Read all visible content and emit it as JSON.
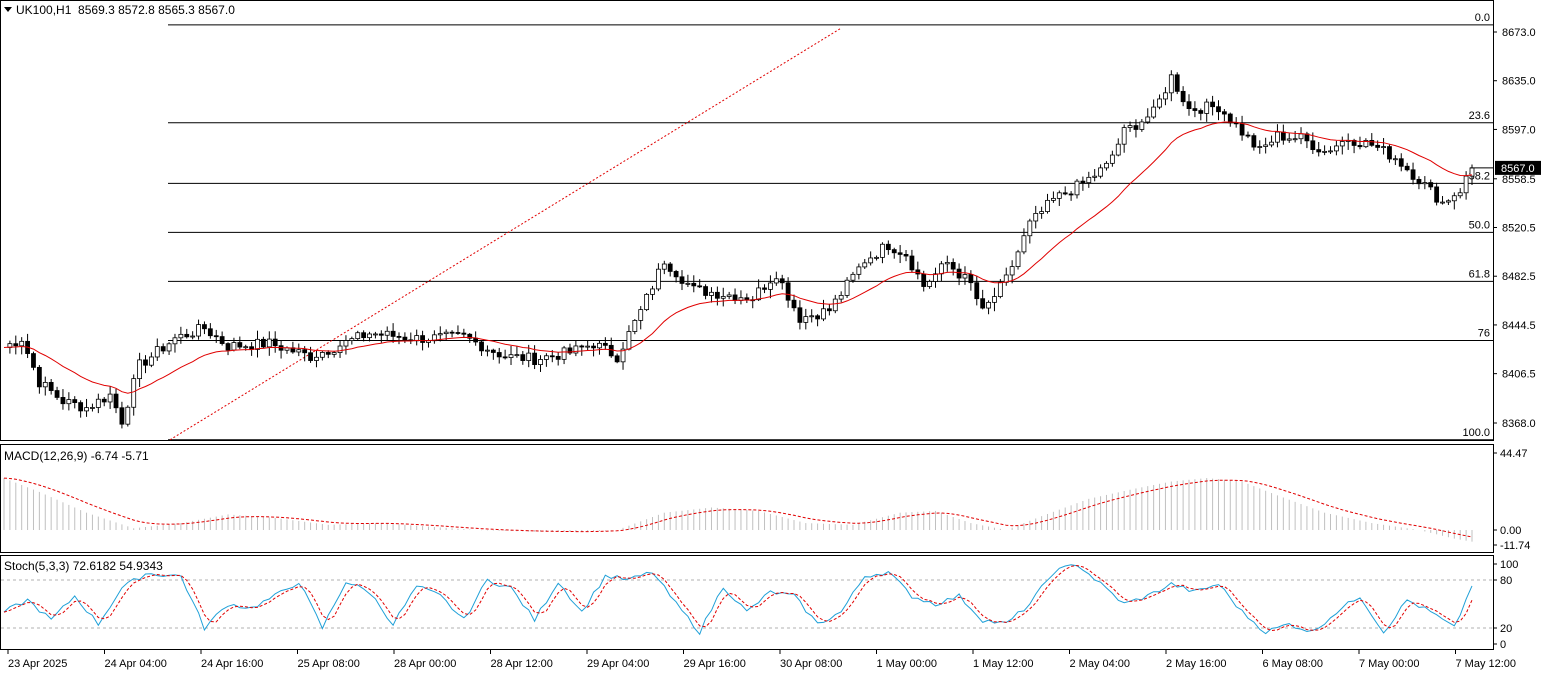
{
  "header": {
    "symbol": "UK100,H1",
    "ohlc": "8569.3 8572.8 8565.3 8567.0"
  },
  "price_axis": {
    "ticks": [
      "8673.0",
      "8635.0",
      "8597.0",
      "8558.5",
      "8520.5",
      "8482.5",
      "8444.5",
      "8406.5",
      "8368.0"
    ],
    "current_price_label": "8567.0"
  },
  "fibonacci": {
    "levels": [
      {
        "label": "0.0",
        "value": 8678.6
      },
      {
        "label": "23.6",
        "value": 8602.2
      },
      {
        "label": "38.2",
        "value": 8554.9
      },
      {
        "label": "50.0",
        "value": 8516.7
      },
      {
        "label": "61.8",
        "value": 8478.5
      },
      {
        "label": "76",
        "value": 8432.4
      },
      {
        "label": "100.0",
        "value": 8354.9
      }
    ]
  },
  "time_axis": {
    "labels": [
      "23 Apr 2025",
      "24 Apr 04:00",
      "24 Apr 16:00",
      "25 Apr 08:00",
      "28 Apr 00:00",
      "28 Apr 12:00",
      "29 Apr 04:00",
      "29 Apr 16:00",
      "30 Apr 08:00",
      "1 May 00:00",
      "1 May 12:00",
      "2 May 04:00",
      "2 May 16:00",
      "6 May 08:00",
      "7 May 00:00",
      "7 May 12:00"
    ]
  },
  "macd": {
    "label": "MACD(12,26,9) -6.74 -5.71",
    "ticks": [
      "44.47",
      "0.00",
      "-11.74"
    ]
  },
  "stoch": {
    "label": "Stoch(5,3,3) 72.6182 54.9343",
    "ticks": [
      "100",
      "80",
      "20",
      "0"
    ]
  },
  "colors": {
    "bull_candle": "#ffffff",
    "bear_candle": "#000000",
    "moving_average": "#e00000",
    "fib_trend_line": "#e00000",
    "stoch_main": "#1fa0d8",
    "stoch_signal": "#e00000",
    "macd_histogram": "#c0c0c0",
    "macd_signal": "#e00000"
  },
  "chart_data": [
    {
      "type": "candlestick",
      "symbol": "UK100",
      "timeframe": "H1",
      "ylim": [
        8350,
        8690
      ],
      "x_labels": [
        "23 Apr 2025",
        "24 Apr 04:00",
        "24 Apr 16:00",
        "25 Apr 08:00",
        "28 Apr 00:00",
        "28 Apr 12:00",
        "29 Apr 04:00",
        "29 Apr 16:00",
        "30 Apr 08:00",
        "1 May 00:00",
        "1 May 12:00",
        "2 May 04:00",
        "2 May 16:00",
        "6 May 08:00",
        "7 May 00:00",
        "7 May 12:00"
      ],
      "waypoints": [
        [
          0,
          8427
        ],
        [
          3,
          8434
        ],
        [
          6,
          8400
        ],
        [
          10,
          8385
        ],
        [
          14,
          8380
        ],
        [
          18,
          8390
        ],
        [
          20,
          8370
        ],
        [
          23,
          8413
        ],
        [
          29,
          8434
        ],
        [
          34,
          8442
        ],
        [
          38,
          8428
        ],
        [
          45,
          8430
        ],
        [
          52,
          8420
        ],
        [
          56,
          8427
        ],
        [
          62,
          8438
        ],
        [
          70,
          8434
        ],
        [
          78,
          8435
        ],
        [
          85,
          8420
        ],
        [
          90,
          8418
        ],
        [
          96,
          8423
        ],
        [
          100,
          8430
        ],
        [
          104,
          8420
        ],
        [
          108,
          8455
        ],
        [
          112,
          8495
        ],
        [
          117,
          8472
        ],
        [
          123,
          8468
        ],
        [
          127,
          8466
        ],
        [
          131,
          8485
        ],
        [
          135,
          8450
        ],
        [
          140,
          8456
        ],
        [
          146,
          8495
        ],
        [
          150,
          8507
        ],
        [
          153,
          8500
        ],
        [
          156,
          8475
        ],
        [
          160,
          8493
        ],
        [
          164,
          8476
        ],
        [
          166,
          8454
        ],
        [
          170,
          8480
        ],
        [
          174,
          8523
        ],
        [
          178,
          8542
        ],
        [
          183,
          8555
        ],
        [
          187,
          8568
        ],
        [
          190,
          8595
        ],
        [
          195,
          8610
        ],
        [
          198,
          8638
        ],
        [
          201,
          8613
        ],
        [
          206,
          8615
        ],
        [
          209,
          8600
        ],
        [
          213,
          8580
        ],
        [
          216,
          8592
        ],
        [
          220,
          8590
        ],
        [
          224,
          8580
        ],
        [
          228,
          8590
        ],
        [
          232,
          8585
        ],
        [
          236,
          8575
        ],
        [
          240,
          8558
        ],
        [
          244,
          8540
        ],
        [
          247,
          8550
        ],
        [
          249,
          8567
        ]
      ],
      "moving_average": {
        "color": "#e00000"
      },
      "last_price": 8567.0,
      "fibonacci_retracement": {
        "levels": [
          "0.0",
          "23.6",
          "38.2",
          "50.0",
          "61.8",
          "76",
          "100.0"
        ],
        "high": 8678.6,
        "low": 8354.9
      }
    },
    {
      "type": "line",
      "name": "MACD(12,26,9)",
      "ylim": [
        -11.74,
        44.47
      ],
      "waypoints": [
        [
          0,
          30
        ],
        [
          6,
          22
        ],
        [
          14,
          10
        ],
        [
          22,
          1
        ],
        [
          30,
          4
        ],
        [
          38,
          9
        ],
        [
          46,
          7
        ],
        [
          55,
          3
        ],
        [
          64,
          4
        ],
        [
          72,
          2
        ],
        [
          80,
          0
        ],
        [
          90,
          -1
        ],
        [
          98,
          -1
        ],
        [
          104,
          0
        ],
        [
          112,
          10
        ],
        [
          120,
          13
        ],
        [
          128,
          11
        ],
        [
          136,
          4
        ],
        [
          144,
          3
        ],
        [
          152,
          10
        ],
        [
          158,
          11
        ],
        [
          164,
          4
        ],
        [
          170,
          0
        ],
        [
          176,
          8
        ],
        [
          184,
          18
        ],
        [
          192,
          24
        ],
        [
          198,
          28
        ],
        [
          204,
          30
        ],
        [
          210,
          28
        ],
        [
          216,
          20
        ],
        [
          224,
          10
        ],
        [
          232,
          4
        ],
        [
          240,
          0
        ],
        [
          246,
          -5
        ],
        [
          249,
          -6.74
        ]
      ],
      "signal_last": -5.71,
      "main_last": -6.74
    },
    {
      "type": "line",
      "name": "Stoch(5,3,3)",
      "ylim": [
        0,
        100
      ],
      "levels": [
        80,
        20
      ],
      "waypoints": [
        [
          0,
          40
        ],
        [
          4,
          55
        ],
        [
          8,
          30
        ],
        [
          12,
          60
        ],
        [
          16,
          25
        ],
        [
          20,
          70
        ],
        [
          24,
          88
        ],
        [
          30,
          85
        ],
        [
          34,
          20
        ],
        [
          38,
          50
        ],
        [
          42,
          45
        ],
        [
          46,
          60
        ],
        [
          50,
          78
        ],
        [
          54,
          20
        ],
        [
          58,
          78
        ],
        [
          62,
          65
        ],
        [
          66,
          25
        ],
        [
          70,
          72
        ],
        [
          74,
          60
        ],
        [
          78,
          30
        ],
        [
          82,
          80
        ],
        [
          86,
          70
        ],
        [
          90,
          30
        ],
        [
          94,
          78
        ],
        [
          98,
          40
        ],
        [
          102,
          85
        ],
        [
          106,
          80
        ],
        [
          110,
          90
        ],
        [
          114,
          50
        ],
        [
          118,
          15
        ],
        [
          122,
          72
        ],
        [
          126,
          40
        ],
        [
          130,
          65
        ],
        [
          134,
          60
        ],
        [
          138,
          25
        ],
        [
          142,
          40
        ],
        [
          146,
          85
        ],
        [
          150,
          90
        ],
        [
          154,
          60
        ],
        [
          158,
          50
        ],
        [
          162,
          60
        ],
        [
          166,
          30
        ],
        [
          170,
          25
        ],
        [
          174,
          50
        ],
        [
          178,
          90
        ],
        [
          182,
          100
        ],
        [
          186,
          75
        ],
        [
          190,
          50
        ],
        [
          194,
          60
        ],
        [
          198,
          75
        ],
        [
          202,
          65
        ],
        [
          206,
          75
        ],
        [
          210,
          40
        ],
        [
          214,
          15
        ],
        [
          218,
          25
        ],
        [
          222,
          15
        ],
        [
          226,
          40
        ],
        [
          230,
          60
        ],
        [
          234,
          15
        ],
        [
          238,
          55
        ],
        [
          242,
          40
        ],
        [
          246,
          20
        ],
        [
          249,
          72.6
        ]
      ],
      "main_last": 72.6182,
      "signal_last": 54.9343
    }
  ]
}
